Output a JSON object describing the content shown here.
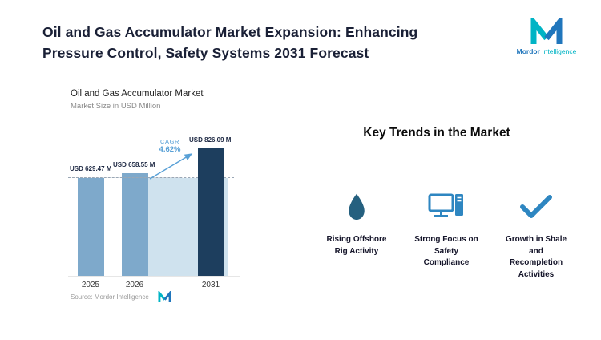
{
  "page": {
    "title": "Oil and Gas Accumulator Market Expansion: Enhancing Pressure Control, Safety Systems 2031 Forecast"
  },
  "brand": {
    "name": "Mordor Intelligence",
    "name_primary": "Mordor",
    "name_secondary": "Intelligence"
  },
  "chart": {
    "title": "Oil and Gas Accumulator Market",
    "subtitle": "Market Size in USD Million",
    "cagr_label": "CAGR",
    "cagr_value": "4.62%",
    "source_label": "Source:  Mordor Intelligence"
  },
  "chart_data": {
    "type": "bar",
    "title": "Oil and Gas Accumulator Market",
    "ylabel": "Market Size in USD Million",
    "categories": [
      "2025",
      "2026",
      "2031"
    ],
    "values": [
      629.47,
      658.55,
      826.09
    ],
    "value_labels": [
      "USD 629.47 M",
      "USD 658.55 M",
      "USD 826.09 M"
    ],
    "unit": "USD Million",
    "cagr_pct": 4.62,
    "reference_line": 629.47,
    "ylim": [
      0,
      900
    ],
    "grid": "off",
    "legend": "off",
    "annotations": [
      "CAGR 4.62%"
    ]
  },
  "trends": {
    "heading": "Key Trends in the Market",
    "items": [
      {
        "icon": "water-drop-icon",
        "label": "Rising Offshore Rig Activity"
      },
      {
        "icon": "desktop-computer-icon",
        "label": "Strong Focus on Safety Compliance"
      },
      {
        "icon": "checkmark-icon",
        "label": "Growth in Shale and Recompletion Activities"
      }
    ]
  },
  "colors": {
    "title_text": "#1a2036",
    "bar_fill": "#7ea9cb",
    "bar_highlight": "#1d3e5e",
    "area_fill": "#cfe2ee",
    "cagr_text": "#58a0d6",
    "trend_icon_blue": "#2e86c1",
    "trend_drop": "#25607f",
    "logo_teal": "#00b4c5",
    "logo_blue": "#2076bc",
    "source_text": "#9a9a9a"
  }
}
